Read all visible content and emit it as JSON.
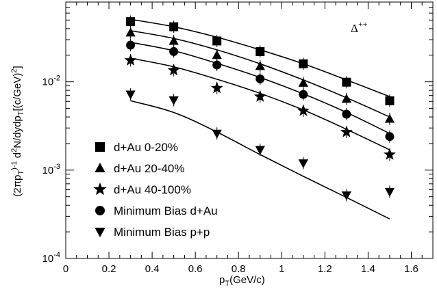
{
  "chart_data": {
    "type": "scatter",
    "xlabel": "p_T(GeV/c)",
    "ylabel": "(2πp_T)^-1 d^2N/dydp_T[(c/GeV)^2]",
    "xlim": [
      0,
      1.7
    ],
    "ylim": [
      0.0001,
      0.08
    ],
    "yscale": "log",
    "x_ticks": [
      "0",
      "0.2",
      "0.4",
      "0.6",
      "0.8",
      "1",
      "1.2",
      "1.4",
      "1.6"
    ],
    "y_ticks": [
      "10^-4",
      "10^-3",
      "10^-2"
    ],
    "annotation": "Δ^++",
    "legend_position": "bottom-left",
    "series": [
      {
        "name": "d+Au 0-20%",
        "marker": "square",
        "x": [
          0.3,
          0.5,
          0.7,
          0.9,
          1.1,
          1.3,
          1.5
        ],
        "y": [
          0.048,
          0.042,
          0.029,
          0.022,
          0.016,
          0.0099,
          0.0061
        ],
        "fit": [
          0.051,
          0.042,
          0.032,
          0.023,
          0.016,
          0.0105,
          0.0068
        ]
      },
      {
        "name": "d+Au 20-40%",
        "marker": "triangle-up",
        "x": [
          0.3,
          0.5,
          0.7,
          0.9,
          1.1,
          1.3,
          1.5
        ],
        "y": [
          0.036,
          0.029,
          0.02,
          0.015,
          0.0097,
          0.0064,
          0.0038
        ],
        "fit": [
          0.038,
          0.031,
          0.023,
          0.016,
          0.0105,
          0.0066,
          0.004
        ]
      },
      {
        "name": "d+Au 40-100%",
        "marker": "star",
        "x": [
          0.3,
          0.5,
          0.7,
          0.9,
          1.1,
          1.3,
          1.5
        ],
        "y": [
          0.0175,
          0.0135,
          0.0085,
          0.0068,
          0.0047,
          0.0027,
          0.0015
        ],
        "fit": [
          0.0185,
          0.0148,
          0.0107,
          0.0074,
          0.0048,
          0.0029,
          0.0017
        ]
      },
      {
        "name": "Minimum Bias d+Au",
        "marker": "circle",
        "x": [
          0.3,
          0.5,
          0.7,
          0.9,
          1.1,
          1.3,
          1.5
        ],
        "y": [
          0.026,
          0.022,
          0.0155,
          0.0108,
          0.0072,
          0.0043,
          0.0024
        ],
        "fit": [
          0.028,
          0.0225,
          0.0162,
          0.0112,
          0.0073,
          0.0045,
          0.0026
        ]
      },
      {
        "name": "Minimum Bias p+p",
        "marker": "triangle-down",
        "x": [
          0.3,
          0.5,
          0.7,
          0.9,
          1.1,
          1.3,
          1.5
        ],
        "y": [
          0.0072,
          0.0062,
          0.0026,
          0.0017,
          0.0012,
          0.00052,
          0.00057
        ],
        "fit": [
          0.0061,
          0.0045,
          0.0027,
          0.0015,
          0.00085,
          0.00049,
          0.00028
        ]
      }
    ]
  }
}
